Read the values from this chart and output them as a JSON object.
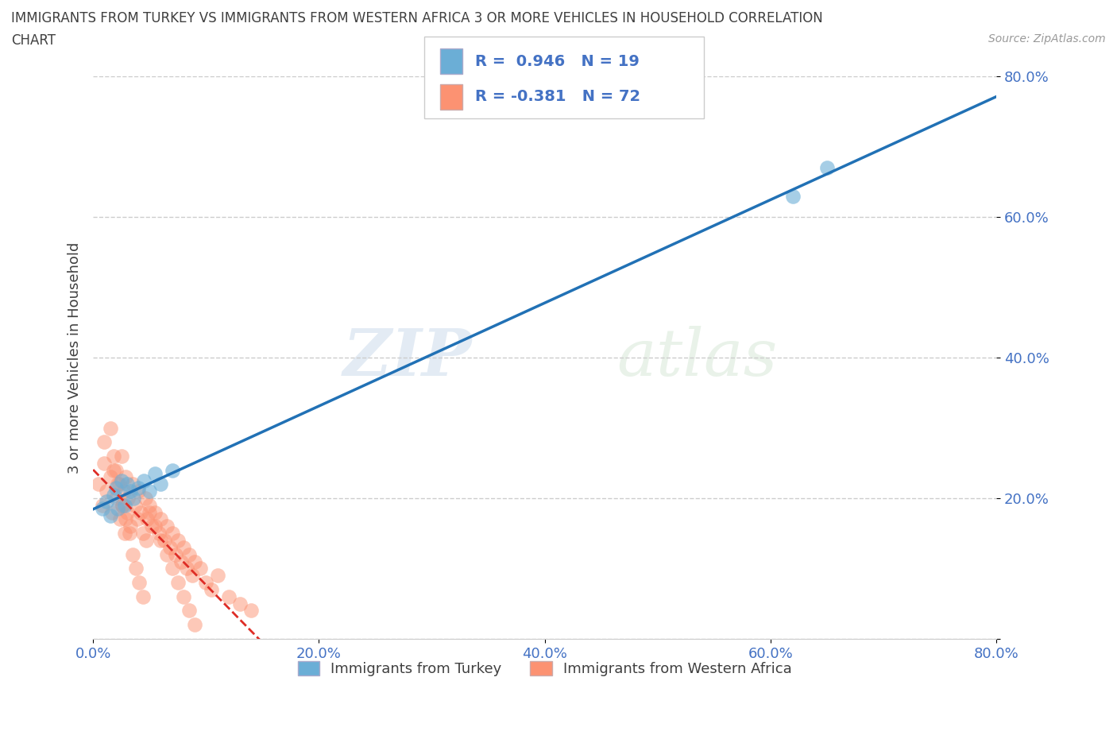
{
  "title_line1": "IMMIGRANTS FROM TURKEY VS IMMIGRANTS FROM WESTERN AFRICA 3 OR MORE VEHICLES IN HOUSEHOLD CORRELATION",
  "title_line2": "CHART",
  "source_text": "Source: ZipAtlas.com",
  "ylabel": "3 or more Vehicles in Household",
  "legend_label_1": "Immigrants from Turkey",
  "legend_label_2": "Immigrants from Western Africa",
  "R1": 0.946,
  "N1": 19,
  "R2": -0.381,
  "N2": 72,
  "color_turkey": "#6baed6",
  "color_west_africa": "#fc9272",
  "line_color_turkey": "#2171b5",
  "line_color_west_africa": "#de2d26",
  "xlim": [
    0.0,
    0.8
  ],
  "ylim": [
    0.0,
    0.8
  ],
  "xticks": [
    0.0,
    0.2,
    0.4,
    0.6,
    0.8
  ],
  "yticks": [
    0.0,
    0.2,
    0.4,
    0.6,
    0.8
  ],
  "xticklabels": [
    "0.0%",
    "20.0%",
    "40.0%",
    "60.0%",
    "80.0%"
  ],
  "yticklabels": [
    "",
    "20.0%",
    "40.0%",
    "60.0%",
    "80.0%"
  ],
  "watermark_zip": "ZIP",
  "watermark_atlas": "atlas",
  "background_color": "#ffffff",
  "grid_color": "#cccccc",
  "tick_color": "#4472c4",
  "title_color": "#404040",
  "turkey_x": [
    0.008,
    0.012,
    0.015,
    0.018,
    0.02,
    0.022,
    0.025,
    0.028,
    0.03,
    0.033,
    0.036,
    0.04,
    0.045,
    0.05,
    0.055,
    0.06,
    0.07,
    0.62,
    0.65
  ],
  "turkey_y": [
    0.185,
    0.195,
    0.175,
    0.205,
    0.215,
    0.185,
    0.225,
    0.19,
    0.22,
    0.21,
    0.2,
    0.215,
    0.225,
    0.21,
    0.235,
    0.22,
    0.24,
    0.63,
    0.67
  ],
  "wafrica_x": [
    0.005,
    0.008,
    0.01,
    0.012,
    0.015,
    0.017,
    0.018,
    0.02,
    0.022,
    0.024,
    0.025,
    0.026,
    0.027,
    0.028,
    0.029,
    0.03,
    0.031,
    0.033,
    0.035,
    0.037,
    0.039,
    0.04,
    0.042,
    0.044,
    0.046,
    0.048,
    0.05,
    0.052,
    0.055,
    0.058,
    0.06,
    0.063,
    0.065,
    0.068,
    0.07,
    0.073,
    0.075,
    0.078,
    0.08,
    0.083,
    0.085,
    0.088,
    0.09,
    0.095,
    0.1,
    0.105,
    0.11,
    0.12,
    0.13,
    0.14,
    0.01,
    0.015,
    0.018,
    0.02,
    0.023,
    0.026,
    0.029,
    0.032,
    0.035,
    0.038,
    0.041,
    0.044,
    0.047,
    0.05,
    0.055,
    0.06,
    0.065,
    0.07,
    0.075,
    0.08,
    0.085,
    0.09
  ],
  "wafrica_y": [
    0.22,
    0.19,
    0.25,
    0.21,
    0.23,
    0.18,
    0.24,
    0.2,
    0.22,
    0.17,
    0.26,
    0.19,
    0.21,
    0.15,
    0.23,
    0.18,
    0.2,
    0.16,
    0.22,
    0.19,
    0.17,
    0.21,
    0.18,
    0.15,
    0.2,
    0.17,
    0.19,
    0.16,
    0.18,
    0.15,
    0.17,
    0.14,
    0.16,
    0.13,
    0.15,
    0.12,
    0.14,
    0.11,
    0.13,
    0.1,
    0.12,
    0.09,
    0.11,
    0.1,
    0.08,
    0.07,
    0.09,
    0.06,
    0.05,
    0.04,
    0.28,
    0.3,
    0.26,
    0.24,
    0.22,
    0.19,
    0.17,
    0.15,
    0.12,
    0.1,
    0.08,
    0.06,
    0.14,
    0.18,
    0.16,
    0.14,
    0.12,
    0.1,
    0.08,
    0.06,
    0.04,
    0.02
  ]
}
